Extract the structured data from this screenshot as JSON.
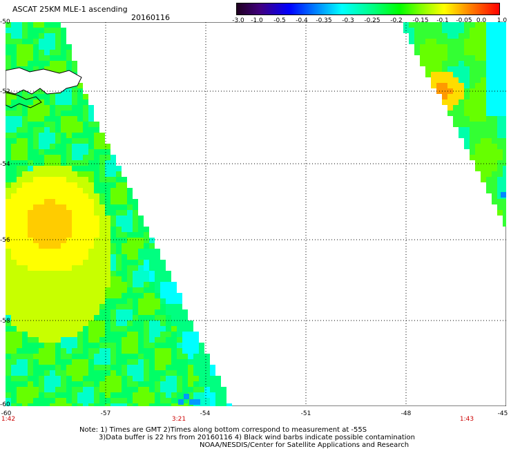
{
  "title": "ASCAT 25KM MLE-1 ascending",
  "date": "20160116",
  "colorbar": {
    "labels": [
      "-3.0",
      "-1.0",
      "-0.5",
      "-0.4",
      "-0.35",
      "-0.3",
      "-0.25",
      "-0.2",
      "-0.15",
      "-0.1",
      "-0.05",
      "0.0",
      "1.0"
    ]
  },
  "map": {
    "lat_labels": [
      "-50",
      "-52",
      "-54",
      "-56",
      "-58",
      "-60"
    ],
    "lon_labels": [
      "-60",
      "-57",
      "-54",
      "-51",
      "-48",
      "-45"
    ],
    "time_labels": [
      "1:42",
      "3:21",
      "1:43"
    ]
  },
  "notes": {
    "line1": "Note: 1) Times are GMT 2)Times along bottom correspond to measurement at -55S",
    "line2": "3)Data buffer is 22 hrs from 20160116 4) Black wind barbs indicate possible contamination",
    "line3": "NOAA/NESDIS/Center for Satellite Applications and Research"
  }
}
